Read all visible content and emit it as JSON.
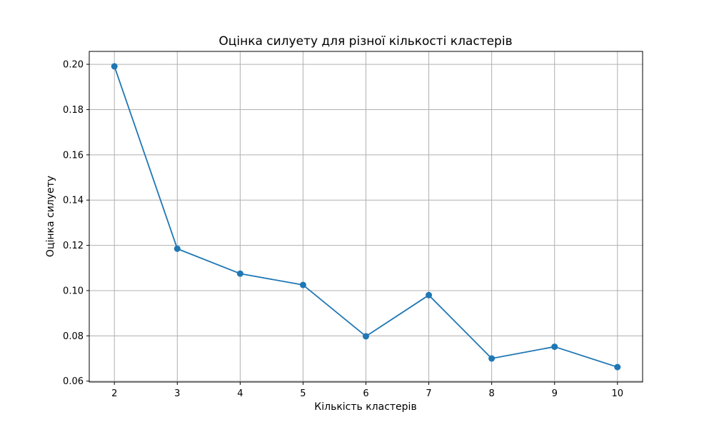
{
  "chart_data": {
    "type": "line",
    "title": "Оцінка силуету для різної кількості кластерів",
    "xlabel": "Кількість кластерів",
    "ylabel": "Оцінка силуету",
    "x": [
      2,
      3,
      4,
      5,
      6,
      7,
      8,
      9,
      10
    ],
    "y": [
      0.1991,
      0.1185,
      0.1075,
      0.1025,
      0.0798,
      0.098,
      0.07,
      0.0752,
      0.0662
    ],
    "xlim": [
      1.6,
      10.4
    ],
    "ylim": [
      0.0596,
      0.2057
    ],
    "xticks": [
      2,
      3,
      4,
      5,
      6,
      7,
      8,
      9,
      10
    ],
    "yticks": [
      0.06,
      0.08,
      0.1,
      0.12,
      0.14,
      0.16,
      0.18,
      0.2
    ],
    "ytick_labels": [
      "0.06",
      "0.08",
      "0.10",
      "0.12",
      "0.14",
      "0.16",
      "0.18",
      "0.20"
    ],
    "grid": true,
    "marker": "circle",
    "line_color": "#1f77b4",
    "grid_color": "#b0b0b0"
  }
}
